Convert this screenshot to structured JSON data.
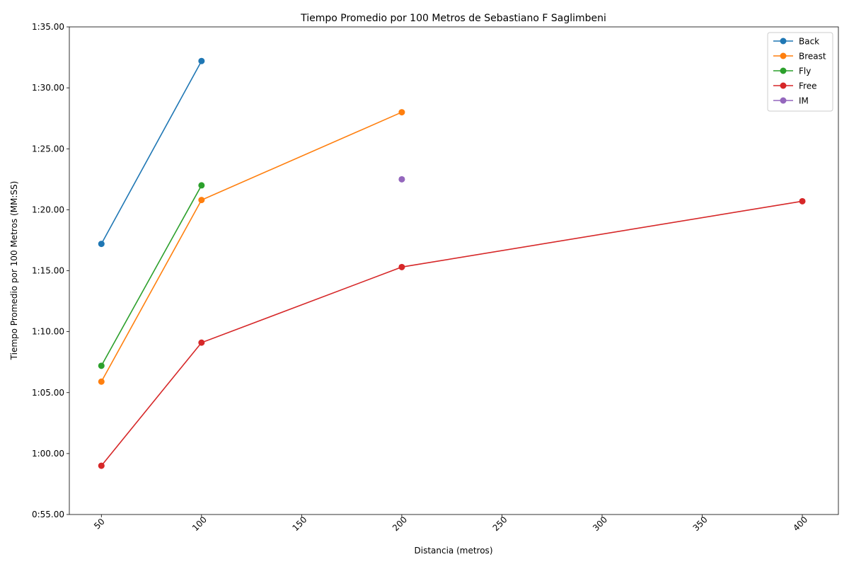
{
  "chart_data": {
    "type": "line",
    "title": "Tiempo Promedio por 100 Metros de Sebastiano F Saglimbeni",
    "xlabel": "Distancia (metros)",
    "ylabel": "Tiempo Promedio por 100 Metros (MM:SS)",
    "xlim": [
      34,
      418
    ],
    "ylim": [
      55,
      95
    ],
    "x_ticks": [
      50,
      100,
      150,
      200,
      250,
      300,
      350,
      400
    ],
    "x_tick_labels": [
      "50",
      "100",
      "150",
      "200",
      "250",
      "300",
      "350",
      "400"
    ],
    "y_ticks": [
      55,
      60,
      65,
      70,
      75,
      80,
      85,
      90,
      95
    ],
    "y_tick_labels": [
      "0:55.00",
      "1:00.00",
      "1:05.00",
      "1:10.00",
      "1:15.00",
      "1:20.00",
      "1:25.00",
      "1:30.00",
      "1:35.00"
    ],
    "legend_position": "top-right",
    "grid": false,
    "series": [
      {
        "name": "Back",
        "color": "#1f77b4",
        "points": [
          [
            50,
            77.2
          ],
          [
            100,
            92.2
          ]
        ]
      },
      {
        "name": "Breast",
        "color": "#ff7f0e",
        "points": [
          [
            50,
            65.9
          ],
          [
            100,
            80.8
          ],
          [
            200,
            88.0
          ]
        ]
      },
      {
        "name": "Fly",
        "color": "#2ca02c",
        "points": [
          [
            50,
            67.2
          ],
          [
            100,
            82.0
          ]
        ]
      },
      {
        "name": "Free",
        "color": "#d62728",
        "points": [
          [
            50,
            59.0
          ],
          [
            100,
            69.1
          ],
          [
            200,
            75.3
          ],
          [
            400,
            80.7
          ]
        ]
      },
      {
        "name": "IM",
        "color": "#9467bd",
        "points": [
          [
            200,
            82.5
          ]
        ]
      }
    ]
  }
}
